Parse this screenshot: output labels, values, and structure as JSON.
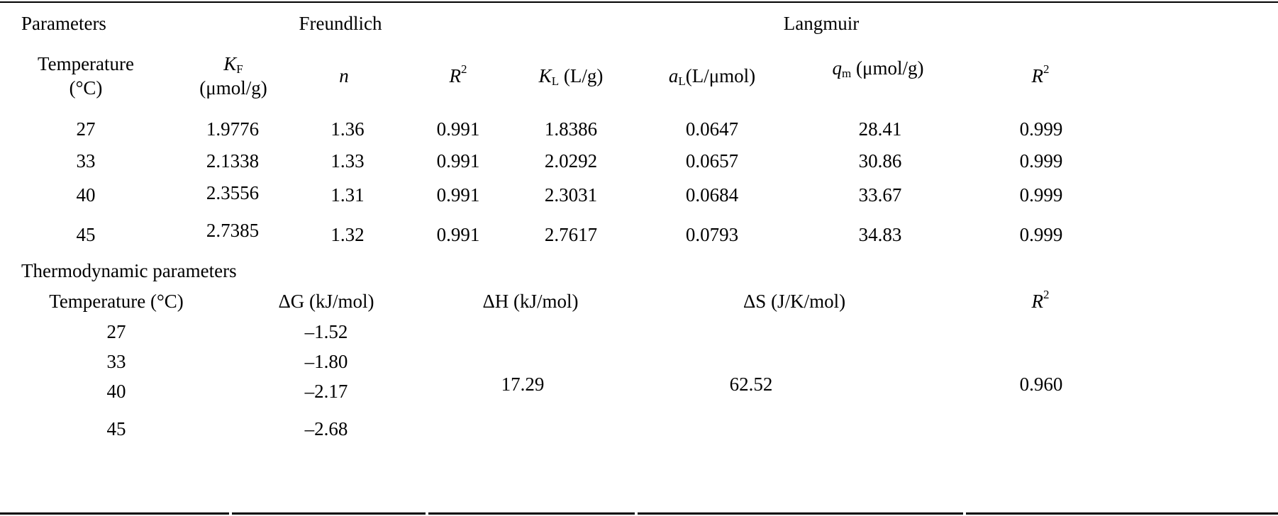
{
  "header": {
    "parameters": "Parameters",
    "freundlich": "Freundlich",
    "langmuir": "Langmuir"
  },
  "columns": {
    "temperature_line1": "Temperature",
    "temperature_line2": "(°C)",
    "kf_symbol": "K",
    "kf_sub": "F",
    "kf_unit": "(μmol/g)",
    "n_symbol": "n",
    "r2_symbol": "R",
    "r2_sup": "2",
    "kl_symbol": "K",
    "kl_sub": "L",
    "kl_unit": "(L/g)",
    "al_symbol": "a",
    "al_sub": "L",
    "al_unit": "(L/μmol)",
    "qm_symbol": "q",
    "qm_sub": "m",
    "qm_unit": "(μmol/g)",
    "r2b_symbol": "R",
    "r2b_sup": "2"
  },
  "rows": [
    {
      "temp": "27",
      "kf": "1.9776",
      "n": "1.36",
      "r2f": "0.991",
      "kl": "1.8386",
      "al": "0.0647",
      "qm": "28.41",
      "r2l": "0.999"
    },
    {
      "temp": "33",
      "kf": "2.1338",
      "n": "1.33",
      "r2f": "0.991",
      "kl": "2.0292",
      "al": "0.0657",
      "qm": "30.86",
      "r2l": "0.999"
    },
    {
      "temp": "40",
      "kf": "2.3556",
      "n": "1.31",
      "r2f": "0.991",
      "kl": "2.3031",
      "al": "0.0684",
      "qm": "33.67",
      "r2l": "0.999"
    },
    {
      "temp": "45",
      "kf": "2.7385",
      "n": "1.32",
      "r2f": "0.991",
      "kl": "2.7617",
      "al": "0.0793",
      "qm": "34.83",
      "r2l": "0.999"
    }
  ],
  "thermo": {
    "title": "Thermodynamic parameters",
    "temp_header": "Temperature (°C)",
    "dg_header": "ΔG (kJ/mol)",
    "dh_header": "ΔH (kJ/mol)",
    "ds_header": "ΔS (J/K/mol)",
    "r2_symbol": "R",
    "r2_sup": "2",
    "rows": [
      {
        "temp": "27",
        "dg": "–1.52"
      },
      {
        "temp": "33",
        "dg": "–1.80"
      },
      {
        "temp": "40",
        "dg": "–2.17"
      },
      {
        "temp": "45",
        "dg": "–2.68"
      }
    ],
    "dh": "17.29",
    "ds": "62.52",
    "r2": "0.960"
  }
}
